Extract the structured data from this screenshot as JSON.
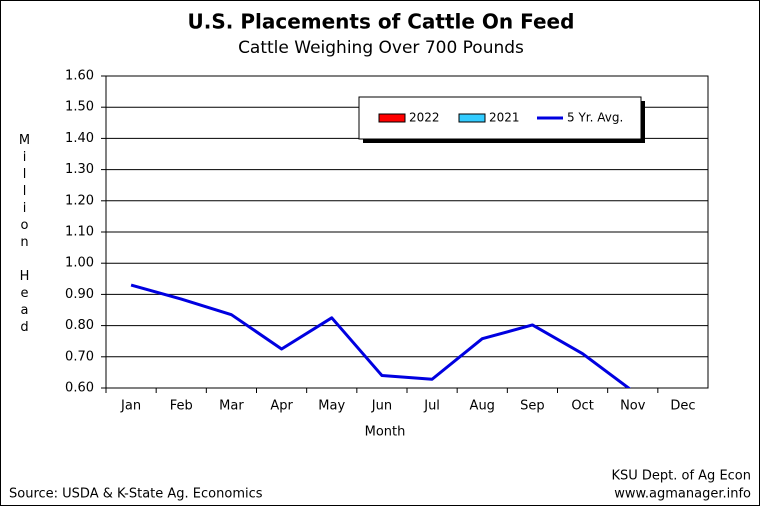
{
  "chart_data": {
    "type": "bar_line",
    "title": "U.S. Placements of Cattle On Feed",
    "subtitle": "Cattle Weighing Over 700 Pounds",
    "ylabel": "Million Head",
    "xlabel": "Month",
    "source": "Source:  USDA & K-State Ag. Economics",
    "credit": [
      "KSU Dept. of Ag Econ",
      "www.agmanager.info"
    ],
    "categories": [
      "Jan",
      "Feb",
      "Mar",
      "Apr",
      "May",
      "Jun",
      "Jul",
      "Aug",
      "Sep",
      "Oct",
      "Nov",
      "Dec"
    ],
    "series": [
      {
        "name": "2022",
        "color": "#ff0000",
        "kind": "bar",
        "values": [
          null,
          null,
          null,
          null,
          null,
          null,
          null,
          null,
          null,
          null,
          null,
          null
        ]
      },
      {
        "name": "2021",
        "color": "#33ccff",
        "kind": "bar",
        "values": [
          null,
          null,
          null,
          null,
          null,
          null,
          null,
          null,
          null,
          null,
          null,
          null
        ]
      },
      {
        "name": "5 Yr. Avg.",
        "color": "#0000e0",
        "kind": "line",
        "values": [
          0.93,
          0.885,
          0.835,
          0.725,
          0.825,
          0.64,
          0.628,
          0.758,
          0.802,
          0.71,
          0.59,
          null
        ]
      }
    ],
    "ylim": [
      0.6,
      1.6
    ],
    "yticks": [
      {
        "value": 0.6,
        "label": "0.60"
      },
      {
        "value": 0.7,
        "label": "0.70"
      },
      {
        "value": 0.8,
        "label": "0.80"
      },
      {
        "value": 0.9,
        "label": "0.90"
      },
      {
        "value": 1.0,
        "label": "1.00"
      },
      {
        "value": 1.1,
        "label": "1.10"
      },
      {
        "value": 1.2,
        "label": "1.20"
      },
      {
        "value": 1.3,
        "label": "1.30"
      },
      {
        "value": 1.4,
        "label": "1.40"
      },
      {
        "value": 1.5,
        "label": "1.50"
      },
      {
        "value": 1.6,
        "label": "1.60"
      }
    ],
    "grid": true
  }
}
